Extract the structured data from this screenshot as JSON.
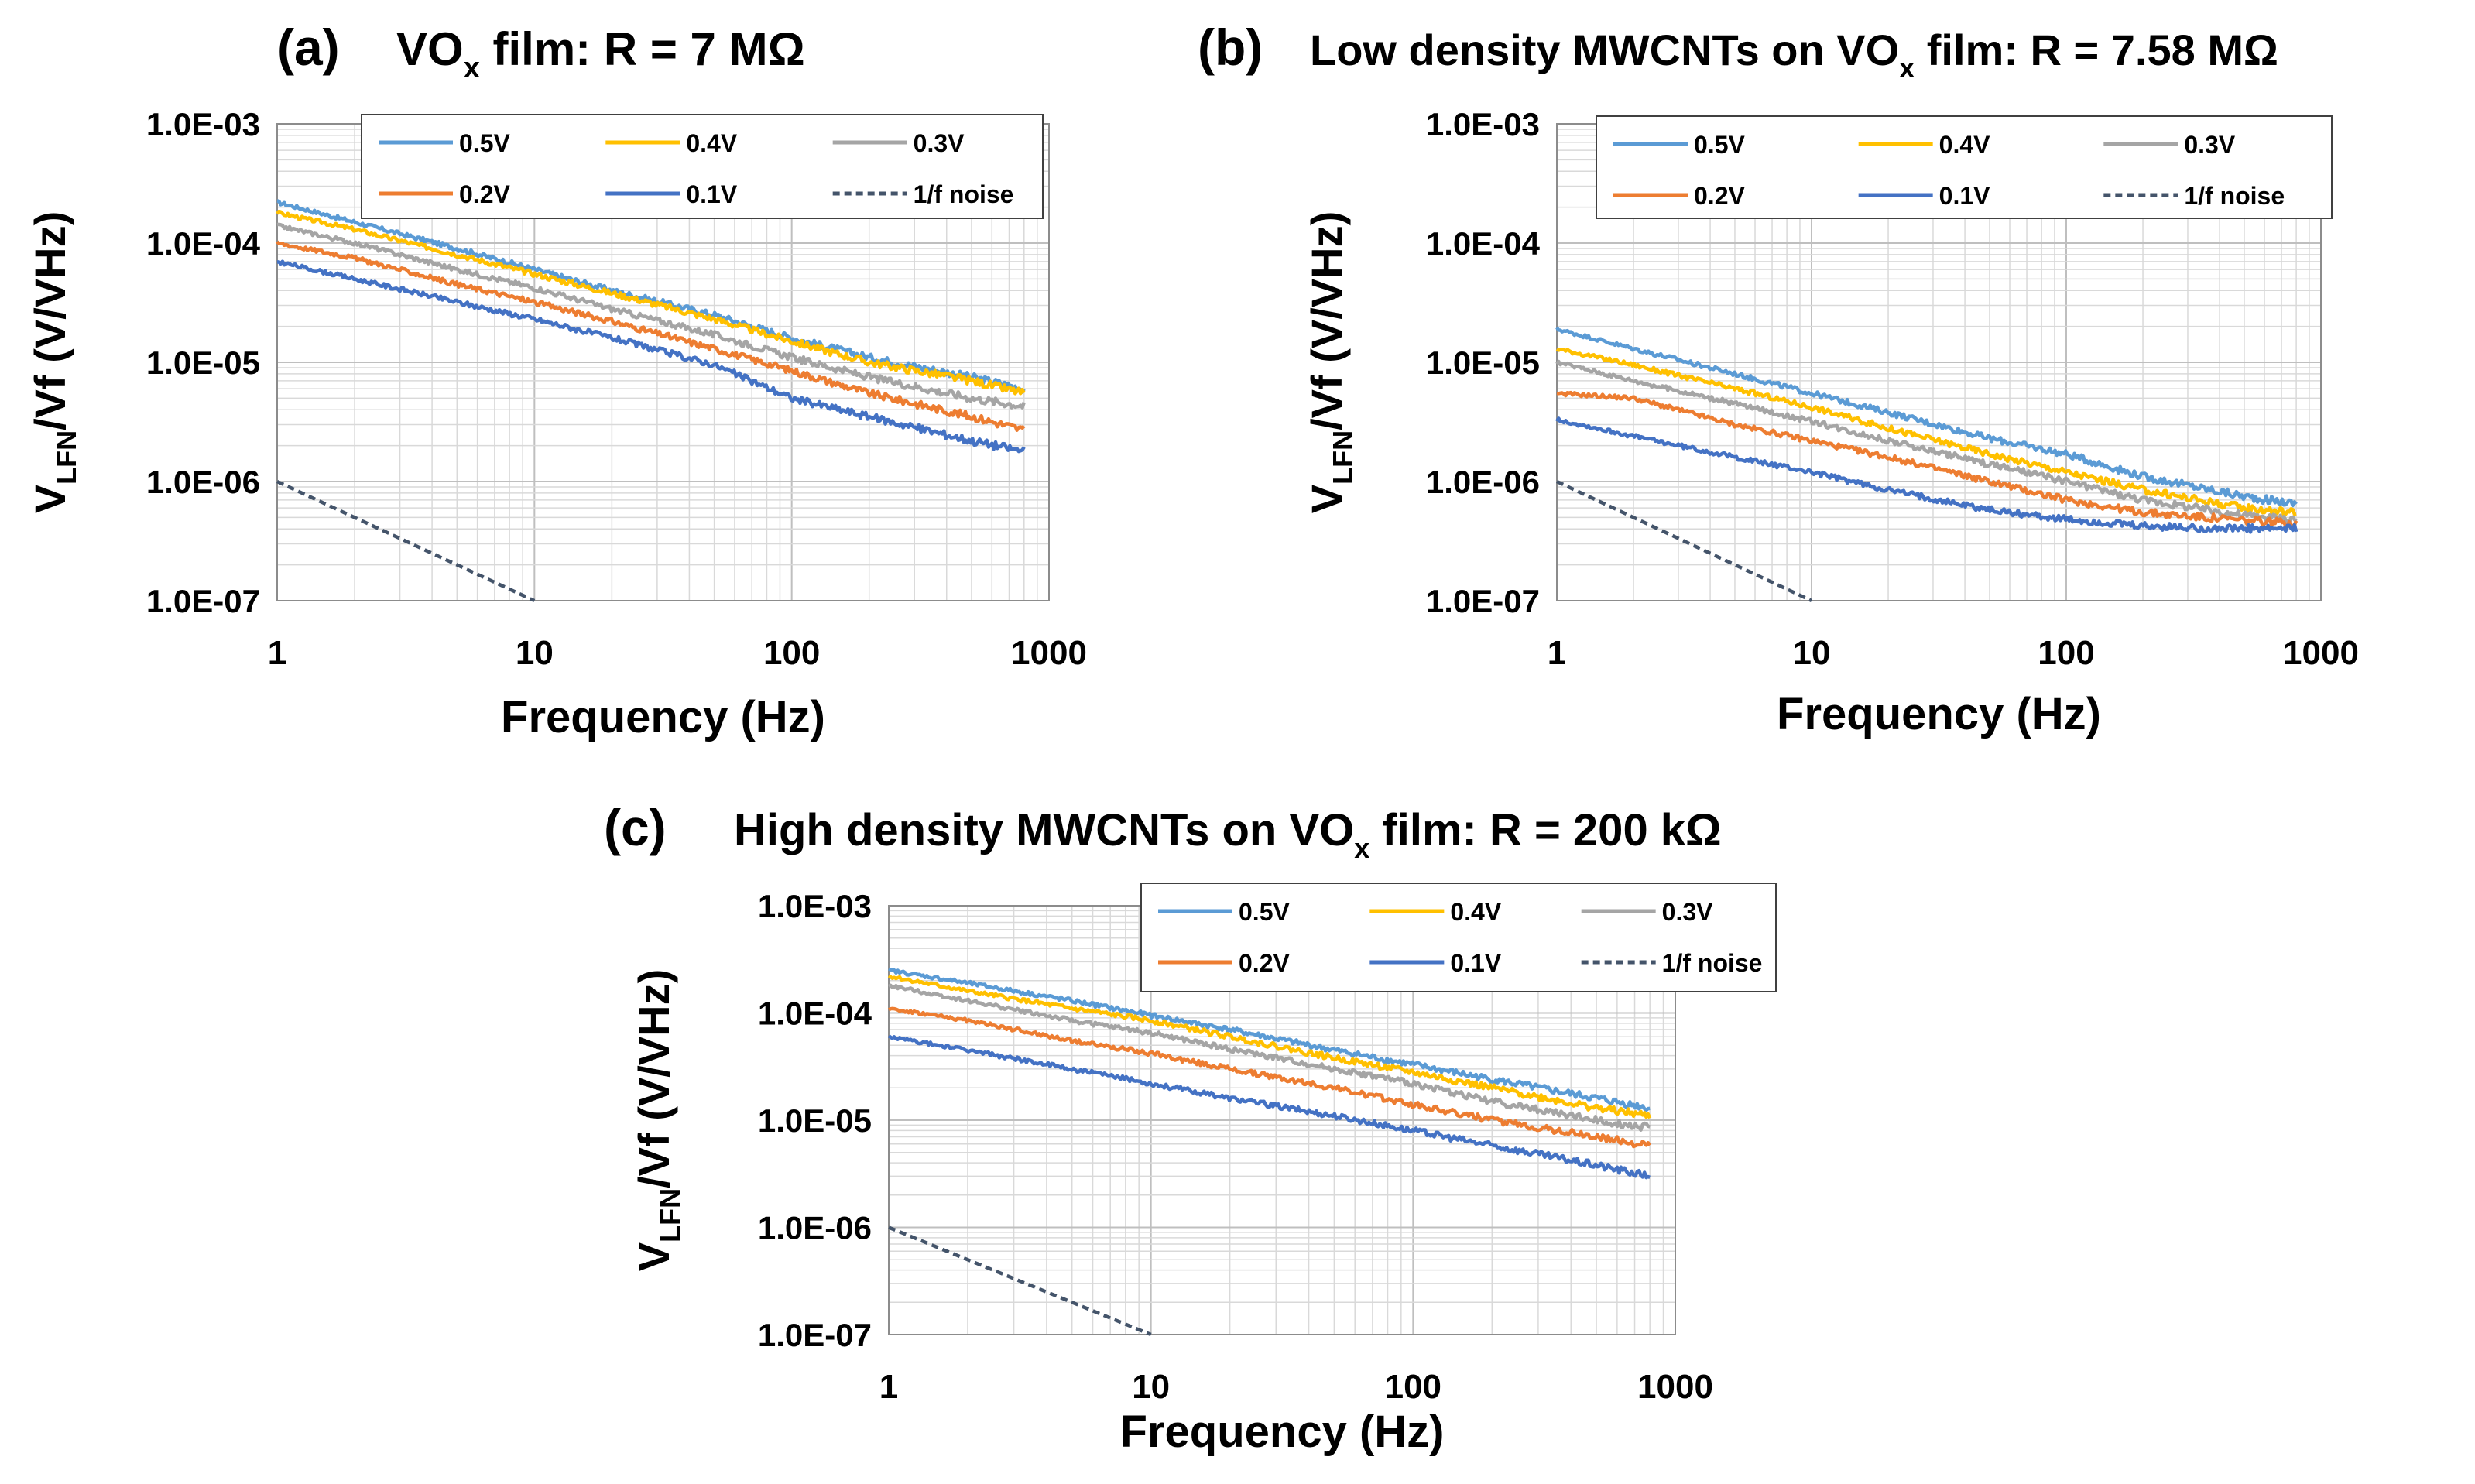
{
  "figure": {
    "panels": [
      {
        "label": "(a)",
        "title_main": "VO",
        "title_sub": "x",
        "title_rest": " film: R = 7 MΩ"
      },
      {
        "label": "(b)",
        "title_main": "Low density MWCNTs on VO",
        "title_sub": "x",
        "title_rest": " film: R = 7.58 MΩ"
      },
      {
        "label": "(c)",
        "title_main": "High density MWCNTs on VO",
        "title_sub": "x",
        "title_rest": " film: R = 200 kΩ"
      }
    ],
    "ylabel_main": "V",
    "ylabel_sub": "LFN",
    "ylabel_rest": "/Vf (V/VHz)",
    "xlabel": "Frequency (Hz)"
  },
  "chart_data": [
    {
      "type": "line",
      "panel": "a",
      "title": "VOx film: R = 7 MΩ",
      "xlabel": "Frequency (Hz)",
      "ylabel": "VLFN/Vf (V/VHz)",
      "xscale": "log",
      "yscale": "log",
      "xlim": [
        1,
        1000
      ],
      "ylim": [
        1e-07,
        0.001
      ],
      "x_ticks": [
        "1",
        "10",
        "100",
        "1000"
      ],
      "y_ticks": [
        "1.0E-07",
        "1.0E-06",
        "1.0E-05",
        "1.0E-04",
        "1.0E-03"
      ],
      "grid": true,
      "legend_position": "top",
      "x": [
        1,
        2,
        5,
        10,
        20,
        50,
        100,
        200,
        500,
        800
      ],
      "series": [
        {
          "name": "0.5V",
          "color": "#5B9BD5",
          "style": "solid",
          "values": [
            0.00022,
            0.00015,
            9e-05,
            6e-05,
            4e-05,
            2.5e-05,
            1.6e-05,
            1.1e-05,
            7.5e-06,
            6e-06
          ]
        },
        {
          "name": "0.4V",
          "color": "#FFC000",
          "style": "solid",
          "values": [
            0.00018,
            0.00013,
            8e-05,
            5.5e-05,
            3.8e-05,
            2.3e-05,
            1.5e-05,
            1e-05,
            7e-06,
            5.5e-06
          ]
        },
        {
          "name": "0.3V",
          "color": "#A5A5A5",
          "style": "solid",
          "values": [
            0.00014,
            0.0001,
            6e-05,
            4.2e-05,
            2.8e-05,
            1.7e-05,
            1.1e-05,
            7.5e-06,
            5e-06,
            4.3e-06
          ]
        },
        {
          "name": "0.2V",
          "color": "#ED7D31",
          "style": "solid",
          "values": [
            0.0001,
            7.5e-05,
            4.5e-05,
            3.2e-05,
            2.2e-05,
            1.3e-05,
            8.5e-06,
            5.5e-06,
            3.5e-06,
            2.7e-06
          ]
        },
        {
          "name": "0.1V",
          "color": "#4472C4",
          "style": "solid",
          "values": [
            7e-05,
            5e-05,
            3.2e-05,
            2.3e-05,
            1.6e-05,
            9.5e-06,
            5e-06,
            3.5e-06,
            2.2e-06,
            1.8e-06
          ]
        },
        {
          "name": "1/f noise",
          "color": "#44546A",
          "style": "dashed",
          "values": [
            1e-06,
            5e-07,
            2e-07,
            1e-07,
            null,
            null,
            null,
            null,
            null,
            null
          ]
        }
      ]
    },
    {
      "type": "line",
      "panel": "b",
      "title": "Low density MWCNTs on VOx film: R = 7.58 MΩ",
      "xlabel": "Frequency (Hz)",
      "ylabel": "VLFN/Vf (V/VHz)",
      "xscale": "log",
      "yscale": "log",
      "xlim": [
        1,
        1000
      ],
      "ylim": [
        1e-07,
        0.001
      ],
      "x_ticks": [
        "1",
        "10",
        "100",
        "1000"
      ],
      "y_ticks": [
        "1.0E-07",
        "1.0E-06",
        "1.0E-05",
        "1.0E-04",
        "1.0E-03"
      ],
      "grid": true,
      "legend_position": "top",
      "x": [
        1,
        2,
        5,
        10,
        20,
        50,
        100,
        200,
        500,
        800
      ],
      "series": [
        {
          "name": "0.5V",
          "color": "#5B9BD5",
          "style": "solid",
          "values": [
            1.9e-05,
            1.3e-05,
            8e-06,
            5.5e-06,
            3.8e-06,
            2.3e-06,
            1.7e-06,
            1.1e-06,
            7.5e-07,
            6.5e-07
          ]
        },
        {
          "name": "0.4V",
          "color": "#FFC000",
          "style": "solid",
          "values": [
            1.3e-05,
            9.5e-06,
            6e-06,
            4.2e-06,
            2.8e-06,
            1.7e-06,
            1.2e-06,
            8.5e-07,
            6e-07,
            5.5e-07
          ]
        },
        {
          "name": "0.3V",
          "color": "#A5A5A5",
          "style": "solid",
          "values": [
            1e-05,
            7e-06,
            4.5e-06,
            3.2e-06,
            2.2e-06,
            1.4e-06,
            1e-06,
            7e-07,
            5.2e-07,
            4.8e-07
          ]
        },
        {
          "name": "0.2V",
          "color": "#ED7D31",
          "style": "solid",
          "values": [
            5.5e-06,
            5e-06,
            3e-06,
            2.2e-06,
            1.6e-06,
            1e-06,
            7e-07,
            5.5e-07,
            4.7e-07,
            4.5e-07
          ]
        },
        {
          "name": "0.1V",
          "color": "#4472C4",
          "style": "solid",
          "values": [
            3.3e-06,
            2.4e-06,
            1.6e-06,
            1.2e-06,
            8.5e-07,
            5.8e-07,
            4.8e-07,
            4.2e-07,
            4e-07,
            4e-07
          ]
        },
        {
          "name": "1/f noise",
          "color": "#44546A",
          "style": "dashed",
          "values": [
            1e-06,
            5e-07,
            2e-07,
            1e-07,
            null,
            null,
            null,
            null,
            null,
            null
          ]
        }
      ]
    },
    {
      "type": "line",
      "panel": "c",
      "title": "High density MWCNTs on VOx film: R = 200 kΩ",
      "xlabel": "Frequency (Hz)",
      "ylabel": "VLFN/Vf (V/VHz)",
      "xscale": "log",
      "yscale": "log",
      "xlim": [
        1,
        1000
      ],
      "ylim": [
        1e-07,
        0.001
      ],
      "x_ticks": [
        "1",
        "10",
        "100",
        "1000"
      ],
      "y_ticks": [
        "1.0E-07",
        "1.0E-06",
        "1.0E-05",
        "1.0E-04",
        "1.0E-03"
      ],
      "grid": true,
      "legend_position": "top",
      "x": [
        1,
        2,
        5,
        10,
        20,
        50,
        100,
        200,
        500,
        800
      ],
      "series": [
        {
          "name": "0.5V",
          "color": "#5B9BD5",
          "style": "solid",
          "values": [
            0.00025,
            0.00019,
            0.00013,
            9.5e-05,
            7e-05,
            4.5e-05,
            3.3e-05,
            2.4e-05,
            1.6e-05,
            1.3e-05
          ]
        },
        {
          "name": "0.4V",
          "color": "#FFC000",
          "style": "solid",
          "values": [
            0.00022,
            0.00016,
            0.00011,
            8.5e-05,
            6e-05,
            3.8e-05,
            2.8e-05,
            2e-05,
            1.3e-05,
            1.1e-05
          ]
        },
        {
          "name": "0.3V",
          "color": "#A5A5A5",
          "style": "solid",
          "values": [
            0.00018,
            0.00013,
            8.5e-05,
            6.5e-05,
            4.6e-05,
            3e-05,
            2.2e-05,
            1.5e-05,
            1e-05,
            8.5e-06
          ]
        },
        {
          "name": "0.2V",
          "color": "#ED7D31",
          "style": "solid",
          "values": [
            0.00011,
            8.5e-05,
            5.5e-05,
            4.2e-05,
            3e-05,
            2e-05,
            1.4e-05,
            1e-05,
            7e-06,
            5.8e-06
          ]
        },
        {
          "name": "0.1V",
          "color": "#4472C4",
          "style": "solid",
          "values": [
            6e-05,
            4.5e-05,
            3e-05,
            2.2e-05,
            1.6e-05,
            1.1e-05,
            8e-06,
            5.8e-06,
            3.8e-06,
            3e-06
          ]
        },
        {
          "name": "1/f noise",
          "color": "#44546A",
          "style": "dashed",
          "values": [
            1e-06,
            5e-07,
            2e-07,
            1e-07,
            null,
            null,
            null,
            null,
            null,
            null
          ]
        }
      ]
    }
  ]
}
